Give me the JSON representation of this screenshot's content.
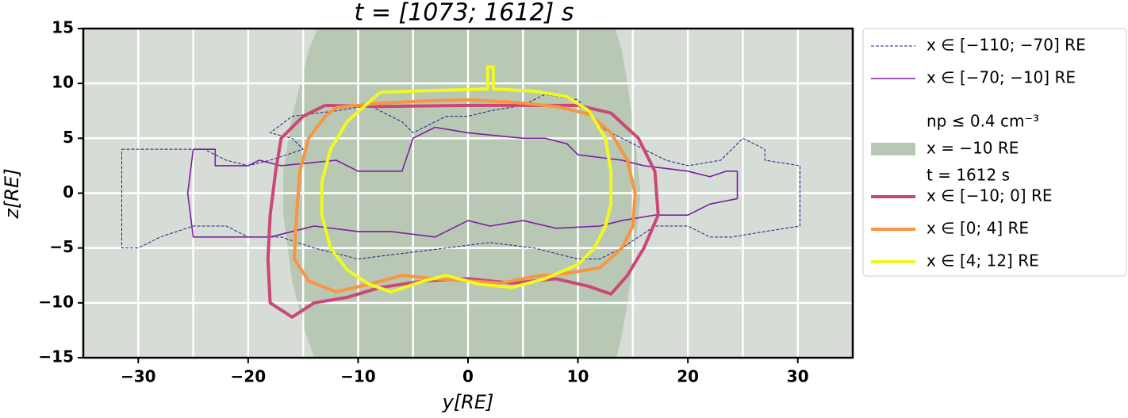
{
  "chart_data": {
    "type": "line",
    "title": "t = [1073; 1612] s",
    "xlabel": "y[RE]",
    "ylabel": "z[RE]",
    "xlim": [
      -35,
      35
    ],
    "ylim": [
      -15,
      15
    ],
    "xticks": [
      {
        "value": -30,
        "label": "−30"
      },
      {
        "value": -20,
        "label": "−20"
      },
      {
        "value": -10,
        "label": "−10"
      },
      0,
      10,
      20,
      30
    ],
    "xminor": [
      -25,
      -15,
      -5,
      5,
      15,
      25
    ],
    "yticks": [
      {
        "value": -15,
        "label": "−15"
      },
      {
        "value": -10,
        "label": "−10"
      },
      {
        "value": -5,
        "label": "−5"
      },
      0,
      5,
      10,
      15
    ],
    "grid": true,
    "background": "#d6dcd6",
    "legend": "outside-right",
    "series": [
      {
        "name": "x ∈ [−110; −70] RE",
        "color": "#1f1f8a",
        "style": "dashed",
        "width": 1,
        "x": [
          -31.5,
          -24,
          -22,
          -20,
          -18,
          -15,
          -16,
          -18,
          -16,
          -12,
          -9,
          -6,
          -5,
          -2,
          0,
          2,
          5,
          7,
          10,
          12,
          14,
          16,
          18,
          20,
          23,
          25,
          27,
          27,
          30.2,
          30.2,
          27,
          24,
          22,
          20,
          17,
          14,
          12,
          10,
          6,
          2,
          -2,
          -6,
          -10,
          -14,
          -17,
          -20,
          -22,
          -25,
          -28,
          -30,
          -31.5,
          -31.5
        ],
        "y": [
          4,
          4,
          3,
          2.5,
          3,
          4,
          5,
          5.5,
          7,
          7.5,
          8,
          6.5,
          5.5,
          7,
          7,
          7.5,
          8,
          9,
          8.5,
          6,
          5,
          4,
          3,
          2.5,
          3,
          5,
          4,
          3,
          2.5,
          -3,
          -3.5,
          -4,
          -4,
          -3,
          -3,
          -5,
          -6,
          -6,
          -5,
          -4.5,
          -5,
          -5.5,
          -6,
          -5,
          -4,
          -4,
          -3,
          -3,
          -4,
          -5,
          -5,
          4
        ]
      },
      {
        "name": "x ∈ [−70; −10] RE",
        "color": "#7b1fa2",
        "style": "solid",
        "width": 1.6,
        "x": [
          -25,
          -23,
          -23,
          -20,
          -19,
          -17,
          -12,
          -10,
          -6,
          -5,
          -3,
          0,
          3,
          5,
          7,
          9,
          10,
          14,
          16,
          20,
          22,
          23.5,
          24.5,
          24.5,
          22,
          20,
          17,
          14,
          12,
          8,
          5,
          2,
          0,
          -3,
          -7,
          -10,
          -14,
          -16,
          -18,
          -21,
          -25,
          -25.5,
          -25
        ],
        "y": [
          4,
          4,
          2.5,
          2.5,
          3,
          2.5,
          3,
          2,
          2,
          5,
          6,
          5.5,
          5.2,
          5,
          5,
          4.5,
          3.5,
          3,
          2.5,
          2,
          1.5,
          2,
          2,
          -0.5,
          -1,
          -2,
          -2,
          -2.5,
          -3,
          -3.2,
          -2.5,
          -3,
          -2.5,
          -4,
          -3.5,
          -3.5,
          -3,
          -3.5,
          -4,
          -4,
          -4,
          0,
          4
        ]
      },
      {
        "name": [
          "np ≤ 0.4 cm⁻³",
          "x = −10 RE",
          "t = 1612 s"
        ],
        "color": "#b9c8b4",
        "style": "area",
        "width": 0,
        "x": [
          -13.7,
          13.4,
          14,
          14.5,
          15.2,
          15.7,
          15.2,
          14.5,
          14,
          13.5,
          -14,
          -15,
          -16,
          -16.8,
          -16.8,
          -16,
          -15,
          -14.5,
          -13.7
        ],
        "y": [
          15,
          15,
          13,
          10,
          5,
          0,
          -5,
          -10,
          -13,
          -15,
          -15,
          -12,
          -8,
          -2,
          2,
          7,
          11,
          13,
          15
        ]
      },
      {
        "name": "x ∈ [−10; 0] RE",
        "color": "#cc4778",
        "style": "solid",
        "width": 4,
        "x": [
          -13,
          -8,
          0,
          10,
          13,
          15.5,
          17,
          17.3,
          16,
          14.5,
          13,
          11,
          8,
          4,
          0,
          -4,
          -8,
          -11,
          -14,
          -16,
          -18,
          -18.2,
          -18,
          -17.5,
          -17,
          -15,
          -13
        ],
        "y": [
          8,
          7.9,
          8,
          8,
          7.3,
          5,
          2,
          -2,
          -5,
          -7.5,
          -9.2,
          -8.5,
          -7.8,
          -8.2,
          -7.8,
          -8,
          -8.6,
          -9.5,
          -10,
          -11.3,
          -10,
          -6,
          -2,
          2,
          5,
          7,
          8
        ]
      },
      {
        "name": "x ∈ [0; 4] RE",
        "color": "#f89540",
        "style": "solid",
        "width": 4,
        "x": [
          -12,
          -8,
          -4,
          0,
          4,
          8,
          11,
          13,
          14.5,
          15.2,
          15,
          14,
          12,
          9,
          6,
          3,
          0,
          -3,
          -6,
          -9,
          -12,
          -14.5,
          -15.8,
          -15.6,
          -15.3,
          -14.5,
          -13,
          -12
        ],
        "y": [
          7.8,
          8.2,
          8.4,
          8.5,
          8.3,
          7.9,
          7.2,
          5.5,
          3,
          0,
          -3,
          -5,
          -6.8,
          -7.3,
          -7.6,
          -8.2,
          -8,
          -7.8,
          -7.5,
          -8.3,
          -9,
          -8,
          -6,
          -2,
          2,
          5,
          7,
          7.8
        ]
      },
      {
        "name": "x ∈ [4; 12] RE",
        "color": "#f0f921",
        "style": "solid",
        "width": 4,
        "x": [
          -8,
          -5,
          1.8,
          1.8,
          2.3,
          2.3,
          6,
          9,
          11,
          12.5,
          13,
          13,
          12.5,
          11.5,
          10,
          7,
          4,
          1,
          -2,
          -4,
          -7,
          -9,
          -11,
          -12.5,
          -13.3,
          -13.3,
          -12.5,
          -11,
          -8
        ],
        "y": [
          9.2,
          9.3,
          9.5,
          11.5,
          11.5,
          9.5,
          9.3,
          8.8,
          7.5,
          5,
          2,
          -1,
          -3,
          -5,
          -6.5,
          -7.8,
          -8.6,
          -8.3,
          -7.5,
          -8,
          -9,
          -8.3,
          -7,
          -5,
          -2,
          1,
          4,
          6.5,
          9.2
        ]
      }
    ]
  }
}
